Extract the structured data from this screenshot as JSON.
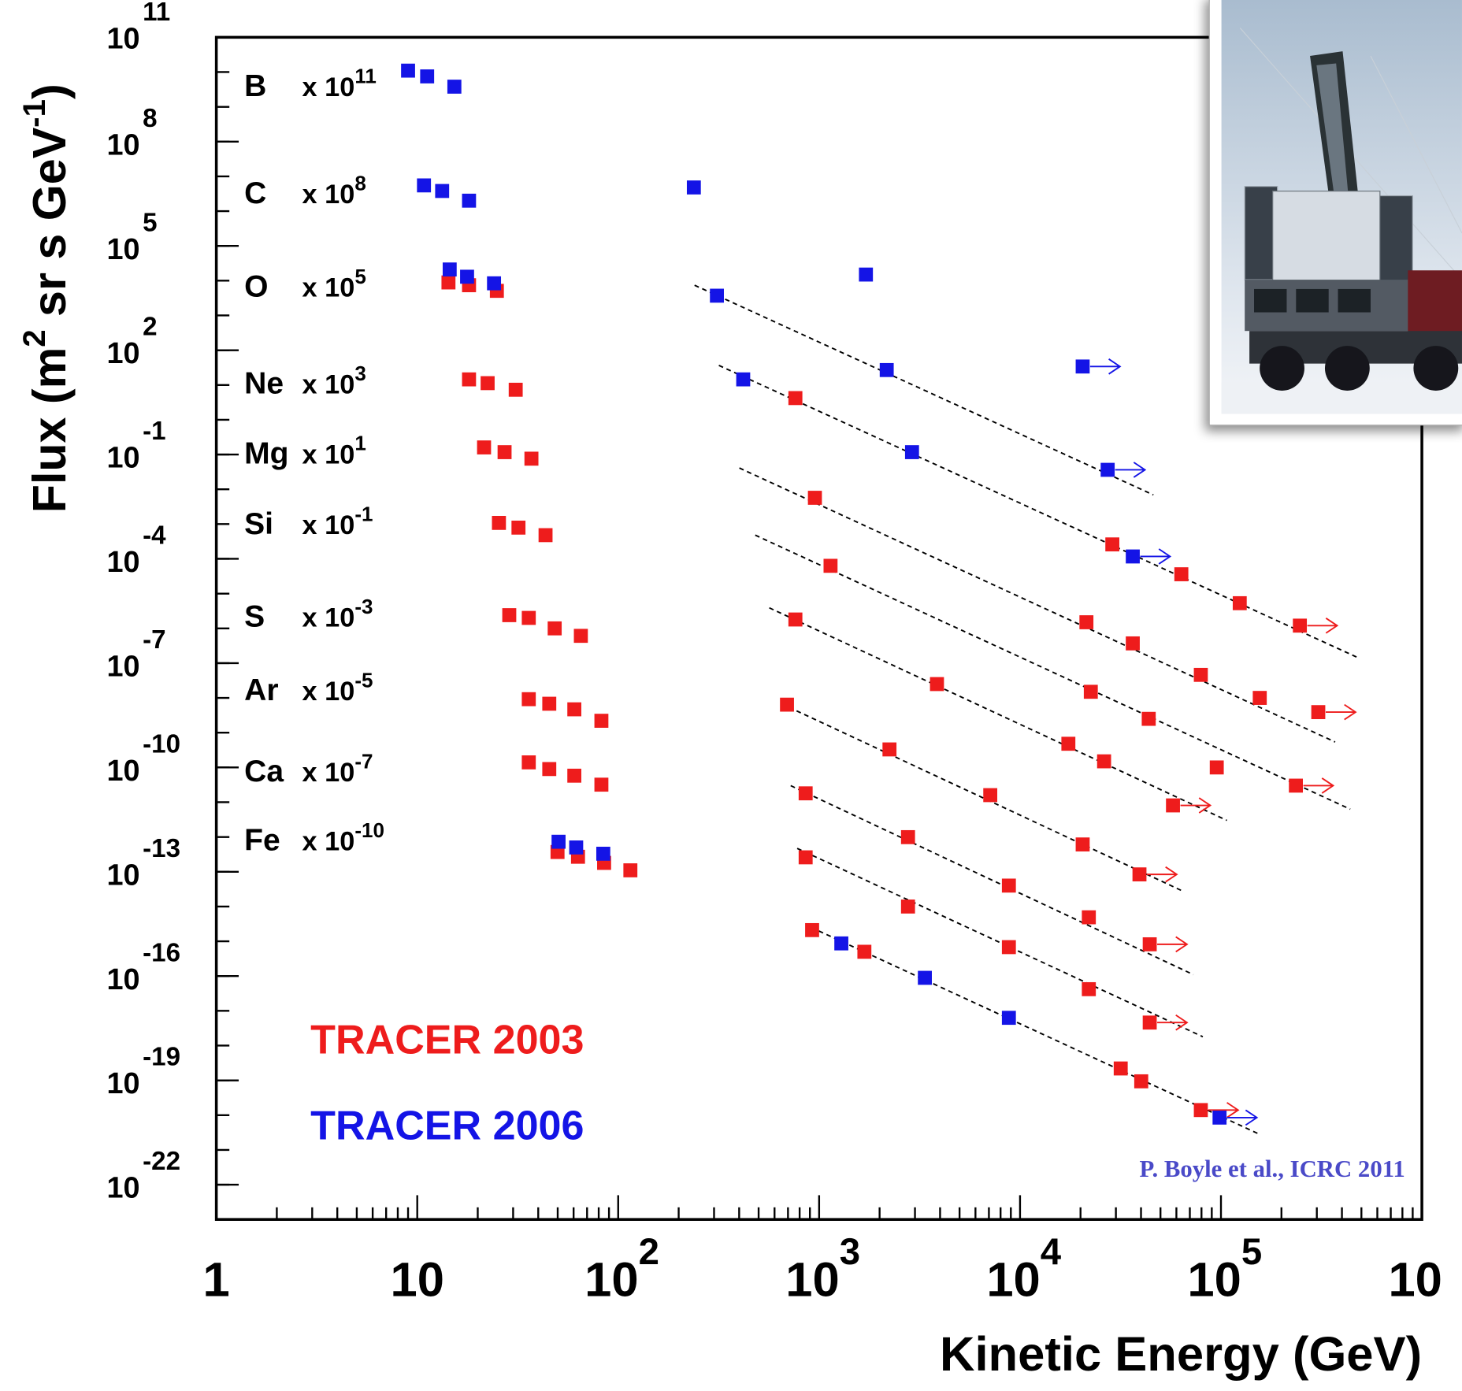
{
  "chart_data": {
    "type": "scatter",
    "xlabel": "Kinetic Energy (GeV)",
    "ylabel": [
      "Flux (m",
      "2",
      " sr s GeV",
      "-1",
      ")"
    ],
    "xlog": true,
    "ylog": true,
    "xlim": [
      1,
      1000000
    ],
    "ylim": [
      1e-23,
      100000000000.0
    ],
    "xticks": [
      1,
      10,
      {
        "value": 100,
        "label": {
          "base": "10",
          "exp": "2"
        }
      },
      {
        "value": 1000,
        "label": {
          "base": "10",
          "exp": "3"
        }
      },
      {
        "value": 10000,
        "label": {
          "base": "10",
          "exp": "4"
        }
      },
      {
        "value": 100000,
        "label": {
          "base": "10",
          "exp": "5"
        }
      },
      {
        "value": 1000000,
        "label": "10"
      }
    ],
    "yticks": [
      {
        "value": 100000000000.0,
        "label": {
          "base": "10",
          "exp": "11"
        }
      },
      {
        "value": 100000000.0,
        "label": {
          "base": "10",
          "exp": "8"
        }
      },
      {
        "value": 100000.0,
        "label": {
          "base": "10",
          "exp": "5"
        }
      },
      {
        "value": 100.0,
        "label": {
          "base": "10",
          "exp": "2"
        }
      },
      {
        "value": 0.1,
        "label": {
          "base": "10",
          "exp": "-1"
        }
      },
      {
        "value": 0.0001,
        "label": {
          "base": "10",
          "exp": "-4"
        }
      },
      {
        "value": 1e-07,
        "label": {
          "base": "10",
          "exp": "-7"
        }
      },
      {
        "value": 1e-10,
        "label": {
          "base": "10",
          "exp": "-10"
        }
      },
      {
        "value": 1e-13,
        "label": {
          "base": "10",
          "exp": "-13"
        }
      },
      {
        "value": 1e-16,
        "label": {
          "base": "10",
          "exp": "-16"
        }
      },
      {
        "value": 1e-19,
        "label": {
          "base": "10",
          "exp": "-19"
        }
      },
      {
        "value": 1e-22,
        "label": {
          "base": "10",
          "exp": "-22"
        }
      }
    ],
    "minor_ticks": true,
    "series": [
      {
        "name": "TRACER 2003",
        "color": "#ee1c1c",
        "x": [
          14.3,
          18.1,
          24.9,
          18.1,
          22.4,
          30.9,
          762,
          21.5,
          27.2,
          37.0,
          25.5,
          31.9,
          43.5,
          953,
          28800,
          63500,
          124000,
          247000,
          28.7,
          35.9,
          48.3,
          65.2,
          1140,
          21400,
          36400,
          79400,
          156000,
          305000,
          35.9,
          45.4,
          60.5,
          82.5,
          762,
          3860,
          22500,
          43700,
          95300,
          236000,
          35.9,
          45.4,
          60.5,
          82.5,
          692,
          2240,
          17400,
          26200,
          57700,
          49.9,
          63.1,
          85.1,
          115,
          857,
          2770,
          7110,
          20500,
          39300,
          857,
          2770,
          8800,
          22000,
          44200,
          923,
          1680,
          8800,
          22000,
          44200,
          31700,
          40100,
          79400
        ],
        "y": [
          8900.0,
          7400.0,
          5100.0,
          14.5,
          11.3,
          7.3,
          4.2,
          0.16,
          0.117,
          0.076,
          0.00108,
          0.00079,
          0.00048,
          0.0057,
          0.00026,
          3.6e-05,
          5.3e-06,
          1.2e-06,
          2.4e-06,
          2e-06,
          1e-06,
          6.1e-07,
          6.3e-05,
          1.5e-06,
          3.7e-07,
          4.6e-08,
          1e-08,
          3.9e-09,
          9.2e-09,
          6.8e-09,
          4.7e-09,
          2.2e-09,
          1.8e-06,
          2.5e-08,
          1.5e-08,
          2.5e-09,
          1e-10,
          3e-11,
          1.4e-10,
          9e-11,
          5.8e-11,
          3.2e-11,
          6.4e-09,
          3.3e-10,
          4.8e-10,
          1.5e-10,
          8.1e-12,
          3.7e-13,
          2.7e-13,
          1.8e-13,
          1.1e-13,
          1.8e-11,
          9.9e-13,
          1.6e-11,
          6.1e-13,
          8.4e-14,
          2.6e-13,
          1e-14,
          4e-14,
          4.9e-15,
          8.2e-16,
          2.1e-15,
          5e-16,
          6.8e-16,
          4.2e-17,
          4.6e-18,
          2.2e-19,
          9.4e-20,
          1.4e-20
        ],
        "lower_limits": [
          17,
          27,
          37,
          46,
          55,
          60,
          65,
          68
        ]
      },
      {
        "name": "TRACER 2006",
        "color": "#1414e6",
        "x": [
          9.0,
          11.2,
          15.3,
          10.8,
          13.3,
          18.1,
          238,
          14.5,
          17.7,
          24.1,
          310,
          1710,
          419,
          2170,
          20500,
          2900,
          27300,
          36400,
          50.5,
          61.8,
          84.3,
          1290,
          3360,
          8800,
          98400
        ],
        "y": [
          11000000000.0,
          7500000000.0,
          3800000000.0,
          5500000.0,
          3800000.0,
          2000000.0,
          4800000.0,
          21000.0,
          13000.0,
          8400.0,
          3700.0,
          15000.0,
          14.5,
          26.9,
          34,
          0.117,
          0.0363,
          0.000117,
          7.3e-13,
          5e-13,
          3.3e-13,
          8.7e-16,
          8.9e-17,
          6.3e-18,
          8.5e-21
        ],
        "lower_limits": [
          14,
          16,
          17,
          24
        ]
      }
    ],
    "fits": [
      {
        "x": [
          240,
          46100
        ],
        "y": [
          7400.0,
          0.0069
        ]
      },
      {
        "x": [
          317,
          473000
        ],
        "y": [
          36.6,
          1.5e-07
        ]
      },
      {
        "x": [
          401,
          370000
        ],
        "y": [
          0.041,
          5.4e-10
        ]
      },
      {
        "x": [
          481,
          440000
        ],
        "y": [
          0.00048,
          6.3e-12
        ]
      },
      {
        "x": [
          565,
          107000
        ],
        "y": [
          3.9e-06,
          3e-12
        ]
      },
      {
        "x": [
          649,
          63500
        ],
        "y": [
          6.8e-09,
          2.9e-14
        ]
      },
      {
        "x": [
          722,
          72900
        ],
        "y": [
          3e-11,
          1.1e-16
        ]
      },
      {
        "x": [
          778,
          81200
        ],
        "y": [
          4.7e-13,
          1.8e-18
        ]
      },
      {
        "x": [
          914,
          156000
        ],
        "y": [
          2.5e-15,
          2.8e-21
        ]
      }
    ],
    "annotations": [
      {
        "element": "B",
        "factor": {
          "base": "x 10",
          "exp": "11"
        }
      },
      {
        "element": "C",
        "factor": {
          "base": "x 10",
          "exp": "8"
        }
      },
      {
        "element": "O",
        "factor": {
          "base": "x 10",
          "exp": "5"
        }
      },
      {
        "element": "Ne",
        "factor": {
          "base": "x 10",
          "exp": "3"
        }
      },
      {
        "element": "Mg",
        "factor": {
          "base": "x 10",
          "exp": "1"
        }
      },
      {
        "element": "Si",
        "factor": {
          "base": "x 10",
          "exp": "-1"
        }
      },
      {
        "element": "S",
        "factor": {
          "base": "x 10",
          "exp": "-3"
        }
      },
      {
        "element": "Ar",
        "factor": {
          "base": "x 10",
          "exp": "-5"
        }
      },
      {
        "element": "Ca",
        "factor": {
          "base": "x 10",
          "exp": "-7"
        }
      },
      {
        "element": "Fe",
        "factor": {
          "base": "x 10",
          "exp": "-10"
        }
      }
    ],
    "citation": "P. Boyle et al., ICRC 2011"
  }
}
